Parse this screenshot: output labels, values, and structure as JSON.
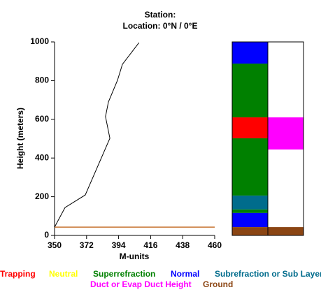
{
  "chart_data": {
    "type": "line",
    "title": "Station:",
    "subtitle": "Location:   0°N /   0°E",
    "x_label": "M-units",
    "y_label": "Height (meters)",
    "xlim": [
      350,
      460
    ],
    "xticks": [
      350,
      372,
      394,
      416,
      438,
      460
    ],
    "ylim": [
      0,
      1000
    ],
    "yticks": [
      0,
      200,
      400,
      600,
      800,
      1000
    ],
    "series": [
      {
        "color": "#000000",
        "x": [
          350,
          357.2,
          371.1,
          388,
          385,
          387,
          393.2,
          396.6,
          408
        ],
        "values": [
          43,
          144,
          209,
          502,
          614,
          690,
          801,
          884,
          996
        ]
      }
    ],
    "ground_height": 43,
    "ground_color": "#c87533",
    "bands": [
      [
        {
          "color": "#0000ff",
          "bottom": 888,
          "top": 1000
        },
        {
          "color": "#008000",
          "bottom": 610,
          "top": 888
        },
        {
          "color": "#ff0000",
          "bottom": 502,
          "top": 610
        },
        {
          "color": "#008000",
          "bottom": 206,
          "top": 502
        },
        {
          "color": "#006c8c",
          "bottom": 134,
          "top": 206
        },
        {
          "color": "#008000",
          "bottom": 116,
          "top": 134
        },
        {
          "color": "#0000ff",
          "bottom": 43,
          "top": 116
        },
        {
          "color": "#8b4513",
          "bottom": 0,
          "top": 43
        }
      ],
      [
        {
          "color": "#ff00ff",
          "bottom": 444,
          "top": 610
        },
        {
          "color": "#8b4513",
          "bottom": 0,
          "top": 43
        }
      ]
    ],
    "legend": [
      {
        "name": "Trapping",
        "color": "#ff0000"
      },
      {
        "name": "Neutral",
        "color": "#ffff00"
      },
      {
        "name": "Superrefraction",
        "color": "#008000"
      },
      {
        "name": "Normal",
        "color": "#0000ff"
      },
      {
        "name": "Subrefraction or Sub Layer",
        "color": "#006c8c"
      },
      {
        "name": "Duct or Evap Duct Height",
        "color": "#ff00ff"
      },
      {
        "name": "Ground",
        "color": "#8b4513"
      }
    ]
  }
}
